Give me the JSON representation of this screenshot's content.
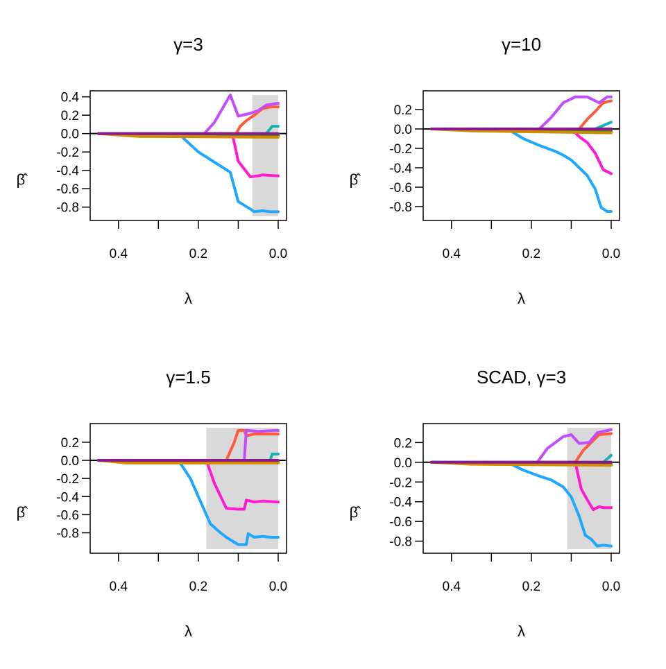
{
  "figure": {
    "layout": "2x2 grid"
  },
  "colors": {
    "shade": "#d9d9d9",
    "s1": "#1ea7ff",
    "s2": "#ff1ad1",
    "s3": "#ff5a3a",
    "s4": "#c24dff",
    "s5": "#12b5b0",
    "s6": "#3f7f32",
    "s7": "#d38b00",
    "s8": "#8a1a8a",
    "zero_line": "#000000"
  },
  "chart_data": [
    {
      "type": "line",
      "title": "γ=3",
      "xlabel": "λ",
      "ylabel": "β̂",
      "xlim": [
        0.45,
        0.0
      ],
      "ylim": [
        -0.9,
        0.42
      ],
      "xticks": [
        0.4,
        0.3,
        0.2,
        0.1,
        0.0
      ],
      "xtick_labels": [
        "0.4",
        "",
        "0.2",
        "",
        "0.0"
      ],
      "yticks": [
        "0.4",
        "0.2",
        "0.0",
        "-0.2",
        "-0.4",
        "-0.6",
        "-0.8"
      ],
      "shaded_region": [
        0.065,
        0.0
      ],
      "series": [
        {
          "color_key": "s1",
          "points": [
            [
              0.45,
              0
            ],
            [
              0.25,
              0
            ],
            [
              0.2,
              -0.2
            ],
            [
              0.12,
              -0.42
            ],
            [
              0.1,
              -0.74
            ],
            [
              0.07,
              -0.82
            ],
            [
              0.06,
              -0.85
            ],
            [
              0.04,
              -0.84
            ],
            [
              0.02,
              -0.85
            ],
            [
              0.0,
              -0.85
            ]
          ]
        },
        {
          "color_key": "s2",
          "points": [
            [
              0.45,
              0
            ],
            [
              0.115,
              0
            ],
            [
              0.1,
              -0.3
            ],
            [
              0.07,
              -0.47
            ],
            [
              0.05,
              -0.46
            ],
            [
              0.04,
              -0.45
            ],
            [
              0.0,
              -0.46
            ]
          ]
        },
        {
          "color_key": "s3",
          "points": [
            [
              0.45,
              0
            ],
            [
              0.105,
              0
            ],
            [
              0.095,
              0.08
            ],
            [
              0.08,
              0.14
            ],
            [
              0.06,
              0.2
            ],
            [
              0.04,
              0.27
            ],
            [
              0.02,
              0.29
            ],
            [
              0.0,
              0.29
            ]
          ]
        },
        {
          "color_key": "s4",
          "points": [
            [
              0.45,
              0
            ],
            [
              0.185,
              0
            ],
            [
              0.16,
              0.12
            ],
            [
              0.12,
              0.42
            ],
            [
              0.1,
              0.19
            ],
            [
              0.07,
              0.22
            ],
            [
              0.05,
              0.25
            ],
            [
              0.03,
              0.31
            ],
            [
              0.0,
              0.33
            ]
          ]
        },
        {
          "color_key": "s5",
          "points": [
            [
              0.45,
              0
            ],
            [
              0.03,
              0
            ],
            [
              0.015,
              0.08
            ],
            [
              0.0,
              0.08
            ]
          ]
        },
        {
          "color_key": "s6",
          "points": [
            [
              0.45,
              0
            ],
            [
              0.3,
              -0.01
            ],
            [
              0.0,
              -0.02
            ]
          ]
        },
        {
          "color_key": "s7",
          "points": [
            [
              0.45,
              0
            ],
            [
              0.35,
              -0.03
            ],
            [
              0.0,
              -0.04
            ]
          ]
        },
        {
          "color_key": "s8",
          "points": [
            [
              0.45,
              0
            ],
            [
              0.0,
              0
            ]
          ]
        }
      ]
    },
    {
      "type": "line",
      "title": "γ=10",
      "xlabel": "λ",
      "ylabel": "β̂",
      "xlim": [
        0.45,
        0.0
      ],
      "ylim": [
        -0.9,
        0.35
      ],
      "xticks": [
        0.4,
        0.3,
        0.2,
        0.1,
        0.0
      ],
      "xtick_labels": [
        "0.4",
        "",
        "0.2",
        "",
        "0.0"
      ],
      "yticks": [
        "0.2",
        "0.0",
        "-0.2",
        "-0.4",
        "-0.6",
        "-0.8"
      ],
      "shaded_region": null,
      "series": [
        {
          "color_key": "s1",
          "points": [
            [
              0.45,
              0
            ],
            [
              0.26,
              0
            ],
            [
              0.22,
              -0.1
            ],
            [
              0.18,
              -0.17
            ],
            [
              0.14,
              -0.23
            ],
            [
              0.12,
              -0.27
            ],
            [
              0.1,
              -0.32
            ],
            [
              0.08,
              -0.4
            ],
            [
              0.06,
              -0.48
            ],
            [
              0.04,
              -0.62
            ],
            [
              0.025,
              -0.81
            ],
            [
              0.01,
              -0.85
            ],
            [
              0.0,
              -0.85
            ]
          ]
        },
        {
          "color_key": "s2",
          "points": [
            [
              0.45,
              0
            ],
            [
              0.1,
              0
            ],
            [
              0.08,
              -0.08
            ],
            [
              0.06,
              -0.14
            ],
            [
              0.04,
              -0.25
            ],
            [
              0.02,
              -0.42
            ],
            [
              0.0,
              -0.46
            ]
          ]
        },
        {
          "color_key": "s3",
          "points": [
            [
              0.45,
              0
            ],
            [
              0.08,
              0
            ],
            [
              0.06,
              0.1
            ],
            [
              0.04,
              0.18
            ],
            [
              0.02,
              0.27
            ],
            [
              0.0,
              0.29
            ]
          ]
        },
        {
          "color_key": "s4",
          "points": [
            [
              0.45,
              0
            ],
            [
              0.18,
              0
            ],
            [
              0.15,
              0.12
            ],
            [
              0.12,
              0.27
            ],
            [
              0.09,
              0.33
            ],
            [
              0.06,
              0.33
            ],
            [
              0.03,
              0.27
            ],
            [
              0.01,
              0.33
            ],
            [
              0.0,
              0.33
            ]
          ]
        },
        {
          "color_key": "s5",
          "points": [
            [
              0.45,
              0
            ],
            [
              0.04,
              0
            ],
            [
              0.0,
              0.07
            ]
          ]
        },
        {
          "color_key": "s6",
          "points": [
            [
              0.45,
              0
            ],
            [
              0.0,
              -0.02
            ]
          ]
        },
        {
          "color_key": "s7",
          "points": [
            [
              0.45,
              0
            ],
            [
              0.35,
              -0.02
            ],
            [
              0.0,
              -0.04
            ]
          ]
        },
        {
          "color_key": "s8",
          "points": [
            [
              0.45,
              0
            ],
            [
              0.0,
              0
            ]
          ]
        }
      ]
    },
    {
      "type": "line",
      "title": "γ=1.5",
      "xlabel": "λ",
      "ylabel": "β̂",
      "xlim": [
        0.45,
        0.0
      ],
      "ylim": [
        -0.98,
        0.36
      ],
      "xticks": [
        0.4,
        0.3,
        0.2,
        0.1,
        0.0
      ],
      "xtick_labels": [
        "0.4",
        "",
        "0.2",
        "",
        "0.0"
      ],
      "yticks": [
        "0.2",
        "0.0",
        "-0.2",
        "-0.4",
        "-0.6",
        "-0.8"
      ],
      "shaded_region": [
        0.18,
        0.0
      ],
      "series": [
        {
          "color_key": "s1",
          "points": [
            [
              0.45,
              0
            ],
            [
              0.25,
              0
            ],
            [
              0.22,
              -0.2
            ],
            [
              0.185,
              -0.55
            ],
            [
              0.17,
              -0.7
            ],
            [
              0.15,
              -0.78
            ],
            [
              0.13,
              -0.85
            ],
            [
              0.1,
              -0.93
            ],
            [
              0.08,
              -0.93
            ],
            [
              0.075,
              -0.81
            ],
            [
              0.06,
              -0.85
            ],
            [
              0.04,
              -0.84
            ],
            [
              0.02,
              -0.85
            ],
            [
              0.0,
              -0.85
            ]
          ]
        },
        {
          "color_key": "s2",
          "points": [
            [
              0.45,
              0
            ],
            [
              0.18,
              0
            ],
            [
              0.16,
              -0.25
            ],
            [
              0.13,
              -0.53
            ],
            [
              0.1,
              -0.54
            ],
            [
              0.085,
              -0.54
            ],
            [
              0.08,
              -0.44
            ],
            [
              0.06,
              -0.46
            ],
            [
              0.04,
              -0.45
            ],
            [
              0.0,
              -0.46
            ]
          ]
        },
        {
          "color_key": "s3",
          "points": [
            [
              0.45,
              0
            ],
            [
              0.13,
              0
            ],
            [
              0.11,
              0.2
            ],
            [
              0.1,
              0.33
            ],
            [
              0.085,
              0.33
            ],
            [
              0.08,
              0.27
            ],
            [
              0.06,
              0.29
            ],
            [
              0.0,
              0.29
            ]
          ]
        },
        {
          "color_key": "s4",
          "points": [
            [
              0.45,
              0
            ],
            [
              0.085,
              0
            ],
            [
              0.08,
              0.33
            ],
            [
              0.05,
              0.32
            ],
            [
              0.0,
              0.33
            ]
          ]
        },
        {
          "color_key": "s5",
          "points": [
            [
              0.45,
              0
            ],
            [
              0.02,
              0
            ],
            [
              0.015,
              0.07
            ],
            [
              0.0,
              0.07
            ]
          ]
        },
        {
          "color_key": "s6",
          "points": [
            [
              0.45,
              0
            ],
            [
              0.0,
              -0.02
            ]
          ]
        },
        {
          "color_key": "s7",
          "points": [
            [
              0.45,
              0
            ],
            [
              0.38,
              -0.03
            ],
            [
              0.0,
              -0.03
            ]
          ]
        },
        {
          "color_key": "s8",
          "points": [
            [
              0.45,
              0
            ],
            [
              0.0,
              0
            ]
          ]
        }
      ]
    },
    {
      "type": "line",
      "title": "SCAD, γ=3",
      "xlabel": "λ",
      "ylabel": "β̂",
      "xlim": [
        0.45,
        0.0
      ],
      "ylim": [
        -0.88,
        0.35
      ],
      "xticks": [
        0.4,
        0.3,
        0.2,
        0.1,
        0.0
      ],
      "xtick_labels": [
        "0.4",
        "",
        "0.2",
        "",
        "0.0"
      ],
      "yticks": [
        "0.2",
        "0.0",
        "-0.2",
        "-0.4",
        "-0.6",
        "-0.8"
      ],
      "shaded_region": [
        0.11,
        0.0
      ],
      "series": [
        {
          "color_key": "s1",
          "points": [
            [
              0.45,
              0
            ],
            [
              0.26,
              0
            ],
            [
              0.22,
              -0.08
            ],
            [
              0.18,
              -0.14
            ],
            [
              0.15,
              -0.18
            ],
            [
              0.12,
              -0.25
            ],
            [
              0.1,
              -0.35
            ],
            [
              0.08,
              -0.55
            ],
            [
              0.065,
              -0.74
            ],
            [
              0.05,
              -0.78
            ],
            [
              0.035,
              -0.85
            ],
            [
              0.02,
              -0.84
            ],
            [
              0.0,
              -0.85
            ]
          ]
        },
        {
          "color_key": "s2",
          "points": [
            [
              0.45,
              0
            ],
            [
              0.09,
              0
            ],
            [
              0.075,
              -0.27
            ],
            [
              0.06,
              -0.38
            ],
            [
              0.045,
              -0.48
            ],
            [
              0.03,
              -0.45
            ],
            [
              0.02,
              -0.46
            ],
            [
              0.0,
              -0.46
            ]
          ]
        },
        {
          "color_key": "s3",
          "points": [
            [
              0.45,
              0
            ],
            [
              0.09,
              0
            ],
            [
              0.07,
              0.12
            ],
            [
              0.05,
              0.2
            ],
            [
              0.03,
              0.28
            ],
            [
              0.0,
              0.29
            ]
          ]
        },
        {
          "color_key": "s4",
          "points": [
            [
              0.45,
              0
            ],
            [
              0.185,
              0
            ],
            [
              0.16,
              0.14
            ],
            [
              0.12,
              0.26
            ],
            [
              0.1,
              0.28
            ],
            [
              0.08,
              0.19
            ],
            [
              0.055,
              0.2
            ],
            [
              0.035,
              0.3
            ],
            [
              0.0,
              0.33
            ]
          ]
        },
        {
          "color_key": "s5",
          "points": [
            [
              0.45,
              0
            ],
            [
              0.02,
              0
            ],
            [
              0.0,
              0.07
            ]
          ]
        },
        {
          "color_key": "s6",
          "points": [
            [
              0.45,
              0
            ],
            [
              0.0,
              -0.02
            ]
          ]
        },
        {
          "color_key": "s7",
          "points": [
            [
              0.45,
              0
            ],
            [
              0.35,
              -0.02
            ],
            [
              0.0,
              -0.03
            ]
          ]
        },
        {
          "color_key": "s8",
          "points": [
            [
              0.45,
              0
            ],
            [
              0.0,
              0
            ]
          ]
        }
      ]
    }
  ]
}
